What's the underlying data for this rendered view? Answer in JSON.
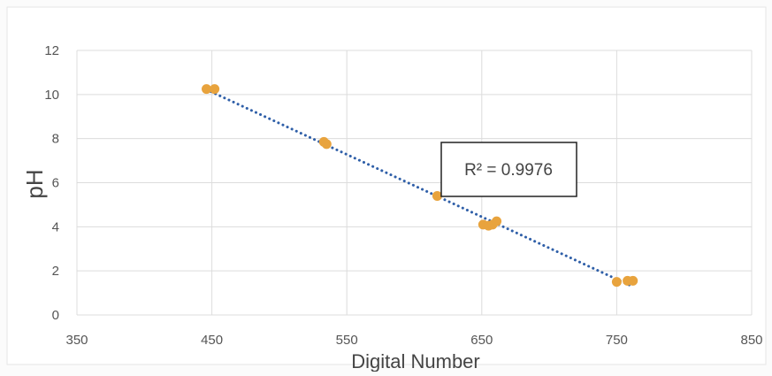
{
  "chart_data": {
    "type": "scatter",
    "title": "",
    "xlabel": "Digital Number",
    "ylabel": "pH",
    "xlim": [
      350,
      850
    ],
    "ylim": [
      0,
      12
    ],
    "xticks": [
      350,
      450,
      550,
      650,
      750,
      850
    ],
    "yticks": [
      0,
      2,
      4,
      6,
      8,
      10,
      12
    ],
    "grid": true,
    "series": [
      {
        "points": [
          {
            "x": 446,
            "y": 10.25
          },
          {
            "x": 452,
            "y": 10.25
          },
          {
            "x": 533,
            "y": 7.85
          },
          {
            "x": 535,
            "y": 7.75
          },
          {
            "x": 617,
            "y": 5.4
          },
          {
            "x": 651,
            "y": 4.1
          },
          {
            "x": 655,
            "y": 4.05
          },
          {
            "x": 658,
            "y": 4.1
          },
          {
            "x": 661,
            "y": 4.25
          },
          {
            "x": 750,
            "y": 1.5
          },
          {
            "x": 758,
            "y": 1.55
          },
          {
            "x": 762,
            "y": 1.55
          }
        ],
        "color": "#e8a33d"
      }
    ],
    "trendline": {
      "style": "dotted",
      "color": "#2f5fa8",
      "x_start": 446,
      "x_end": 762,
      "slope": -0.02829,
      "intercept": 22.84
    },
    "annotation": {
      "text": "R² = 0.9976"
    }
  }
}
